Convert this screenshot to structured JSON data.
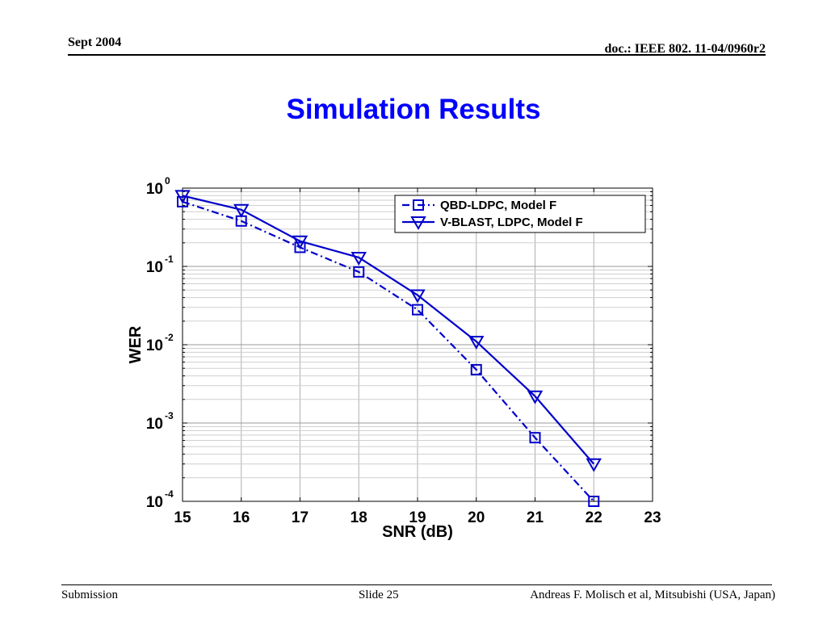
{
  "header": {
    "date": "Sept 2004",
    "doc": "doc.: IEEE 802. 11-04/0960r2"
  },
  "title": "Simulation Results",
  "footer": {
    "left": "Submission",
    "center": "Slide 25",
    "right": "Andreas F. Molisch et al, Mitsubishi (USA, Japan)"
  },
  "colors": {
    "title": "#0000ff",
    "series": "#0000cc"
  },
  "chart_data": {
    "type": "line",
    "xlabel": "SNR (dB)",
    "ylabel": "WER",
    "xlim": [
      15,
      23
    ],
    "ylim": [
      0.0001,
      1
    ],
    "y_scale": "log",
    "x_ticks": [
      15,
      16,
      17,
      18,
      19,
      20,
      21,
      22,
      23
    ],
    "y_ticks": [
      {
        "base": "10",
        "exp": "0",
        "value": 1
      },
      {
        "base": "10",
        "exp": "-1",
        "value": 0.1
      },
      {
        "base": "10",
        "exp": "-2",
        "value": 0.01
      },
      {
        "base": "10",
        "exp": "-3",
        "value": 0.001
      },
      {
        "base": "10",
        "exp": "-4",
        "value": 0.0001
      }
    ],
    "grid": true,
    "legend_position": "top-right",
    "series": [
      {
        "name": "QBD-LDPC, Model F",
        "marker": "square",
        "line": "dash-dot",
        "x": [
          15,
          16,
          17,
          18,
          19,
          20,
          21,
          22
        ],
        "y": [
          0.67,
          0.38,
          0.175,
          0.085,
          0.028,
          0.0048,
          0.00065,
          0.0001
        ]
      },
      {
        "name": "V-BLAST, LDPC, Model F",
        "marker": "triangle-down",
        "line": "solid",
        "x": [
          15,
          16,
          17,
          18,
          19,
          20,
          21,
          22
        ],
        "y": [
          0.8,
          0.53,
          0.21,
          0.13,
          0.043,
          0.011,
          0.0022,
          0.0003
        ]
      }
    ]
  }
}
